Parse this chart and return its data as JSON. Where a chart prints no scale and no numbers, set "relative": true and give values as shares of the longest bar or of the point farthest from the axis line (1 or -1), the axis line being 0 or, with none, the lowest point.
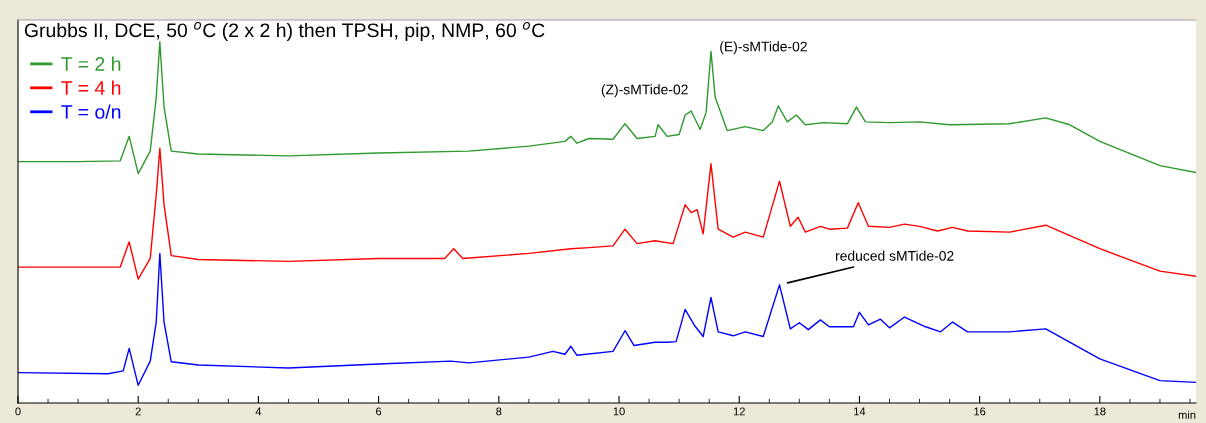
{
  "chart_data": {
    "type": "line",
    "title": "Grubbs II, DCE, 50 $^{o}$C (2 x 2 h) then TPSH, pip, NMP, 60 $^{o}$C",
    "xlabel": "min",
    "relative": true,
    "tick_labels": "x",
    "legend": "top left",
    "grid": false,
    "marker": "none",
    "line_style": "solid",
    "xlim": [
      0,
      19.6
    ],
    "xticks": [
      0,
      2,
      4,
      6,
      8,
      10,
      12,
      14,
      16,
      18
    ],
    "series": [
      {
        "name": "T = 2 h",
        "color": "#2e9a2e",
        "x": [
          0,
          1.0,
          1.7,
          1.85,
          2.0,
          2.2,
          2.3,
          2.36,
          2.43,
          2.55,
          3.0,
          4.5,
          6,
          7.5,
          8.5,
          9.1,
          9.2,
          9.3,
          9.5,
          9.9,
          10.1,
          10.3,
          10.6,
          10.65,
          10.8,
          11.0,
          11.1,
          11.2,
          11.35,
          11.45,
          11.53,
          11.6,
          11.8,
          12.1,
          12.4,
          12.55,
          12.65,
          12.8,
          12.95,
          13.1,
          13.4,
          13.8,
          13.95,
          14.1,
          14.5,
          15,
          15.5,
          16.5,
          17.1,
          17.5,
          18,
          19,
          19.6
        ],
        "values": [
          0.668,
          0.668,
          0.67,
          0.738,
          0.635,
          0.697,
          0.846,
          1.0,
          0.819,
          0.697,
          0.689,
          0.684,
          0.692,
          0.697,
          0.711,
          0.724,
          0.738,
          0.719,
          0.732,
          0.73,
          0.773,
          0.732,
          0.738,
          0.77,
          0.738,
          0.743,
          0.797,
          0.808,
          0.757,
          0.805,
          0.973,
          0.846,
          0.754,
          0.765,
          0.754,
          0.778,
          0.822,
          0.778,
          0.797,
          0.77,
          0.776,
          0.773,
          0.819,
          0.778,
          0.776,
          0.778,
          0.77,
          0.773,
          0.789,
          0.77,
          0.724,
          0.657,
          0.638
        ]
      },
      {
        "name": "T = 4 h",
        "color": "#ff0000",
        "x": [
          0,
          1.7,
          1.85,
          2.0,
          2.2,
          2.3,
          2.36,
          2.43,
          2.55,
          3,
          4.5,
          6,
          7.1,
          7.25,
          7.4,
          8.5,
          9.2,
          9.5,
          9.9,
          10.1,
          10.3,
          10.6,
          10.9,
          11.1,
          11.2,
          11.3,
          11.4,
          11.53,
          11.65,
          11.9,
          12.1,
          12.4,
          12.67,
          12.85,
          12.98,
          13.1,
          13.35,
          13.5,
          13.8,
          13.98,
          14.15,
          14.5,
          14.75,
          15,
          15.3,
          15.55,
          15.8,
          16.5,
          17.1,
          18,
          19,
          19.6
        ],
        "values": [
          0.376,
          0.376,
          0.446,
          0.343,
          0.4,
          0.576,
          0.705,
          0.549,
          0.408,
          0.397,
          0.392,
          0.4,
          0.4,
          0.427,
          0.4,
          0.414,
          0.427,
          0.43,
          0.435,
          0.481,
          0.441,
          0.449,
          0.441,
          0.549,
          0.527,
          0.535,
          0.468,
          0.662,
          0.481,
          0.459,
          0.473,
          0.459,
          0.614,
          0.489,
          0.514,
          0.473,
          0.489,
          0.481,
          0.484,
          0.554,
          0.489,
          0.486,
          0.495,
          0.489,
          0.476,
          0.486,
          0.476,
          0.473,
          0.492,
          0.427,
          0.365,
          0.351
        ]
      },
      {
        "name": "T = o/n",
        "color": "#0000ff",
        "x": [
          0,
          1.5,
          1.75,
          1.85,
          2.0,
          2.2,
          2.3,
          2.36,
          2.43,
          2.55,
          3,
          4.5,
          6,
          7.2,
          7.5,
          8.5,
          8.9,
          9.1,
          9.2,
          9.3,
          9.9,
          10.1,
          10.25,
          10.6,
          10.8,
          10.95,
          11.1,
          11.25,
          11.4,
          11.53,
          11.65,
          11.9,
          12.1,
          12.4,
          12.67,
          12.85,
          13.0,
          13.15,
          13.35,
          13.5,
          13.9,
          14.0,
          14.15,
          14.35,
          14.5,
          14.75,
          15.1,
          15.35,
          15.55,
          15.8,
          16.5,
          17.1,
          18,
          19,
          19.6
        ],
        "values": [
          0.084,
          0.081,
          0.089,
          0.151,
          0.049,
          0.116,
          0.224,
          0.414,
          0.224,
          0.114,
          0.105,
          0.097,
          0.108,
          0.116,
          0.111,
          0.127,
          0.143,
          0.135,
          0.157,
          0.132,
          0.143,
          0.2,
          0.159,
          0.168,
          0.168,
          0.17,
          0.259,
          0.216,
          0.184,
          0.292,
          0.197,
          0.186,
          0.197,
          0.184,
          0.327,
          0.205,
          0.222,
          0.203,
          0.23,
          0.211,
          0.211,
          0.251,
          0.216,
          0.232,
          0.208,
          0.238,
          0.211,
          0.197,
          0.224,
          0.197,
          0.197,
          0.205,
          0.122,
          0.062,
          0.057
        ]
      }
    ],
    "annotations": [
      {
        "text": "(Z)-sMTide-02",
        "x": 11.2,
        "y": 0.808
      },
      {
        "text": "(E)-sMTide-02",
        "x": 11.53,
        "y": 0.973
      },
      {
        "text": "reduced sMTide-02",
        "x": 12.67,
        "y": 0.327
      }
    ]
  }
}
